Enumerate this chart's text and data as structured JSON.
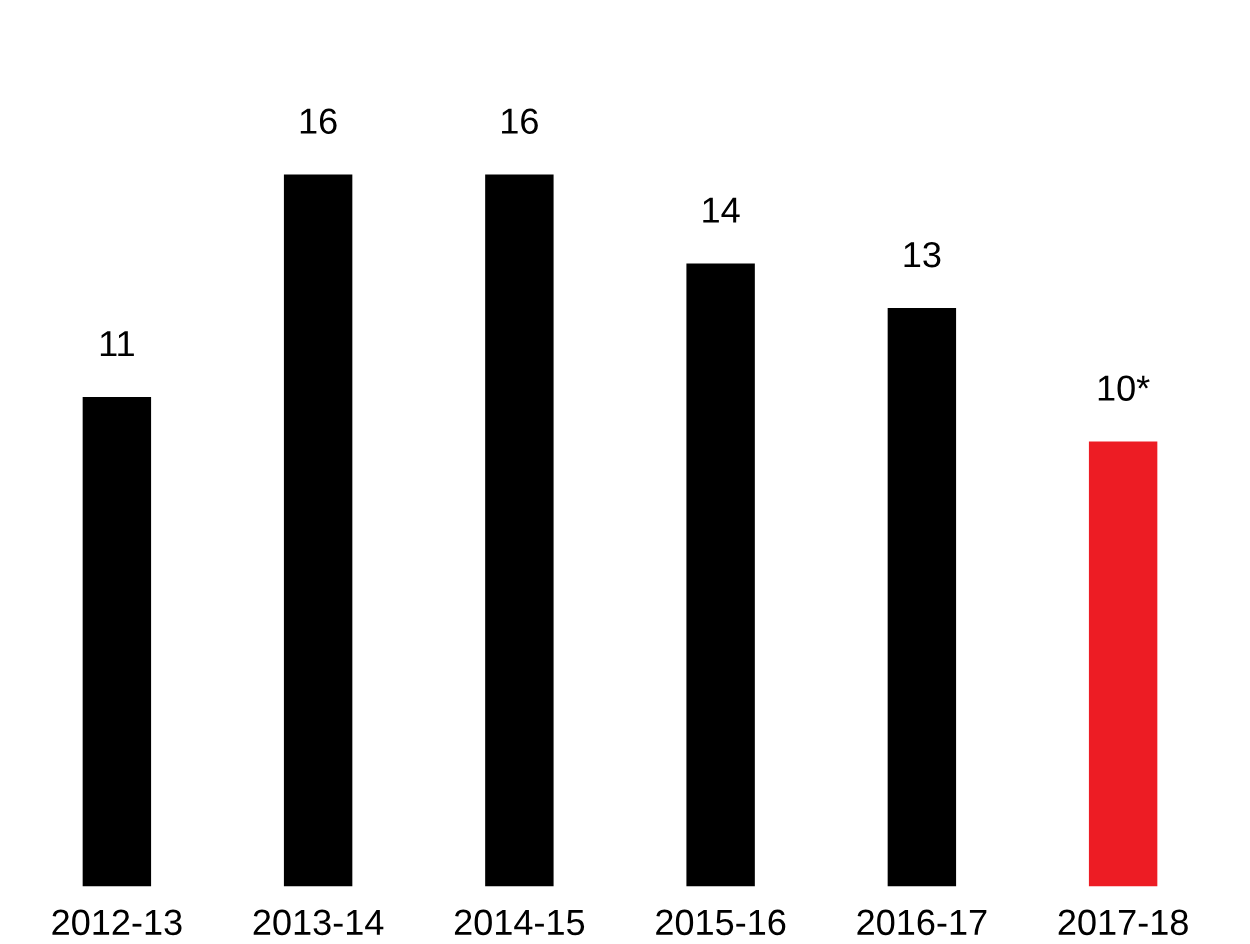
{
  "chart_data": {
    "type": "bar",
    "categories": [
      "2012-13",
      "2013-14",
      "2014-15",
      "2015-16",
      "2016-17",
      "2017-18"
    ],
    "values": [
      11,
      16,
      16,
      14,
      13,
      10
    ],
    "colors": [
      "#000000",
      "#000000",
      "#000000",
      "#000000",
      "#000000",
      "#ed1c24"
    ],
    "value_labels": [
      "11",
      "16",
      "16",
      "14",
      "13",
      "10*"
    ],
    "grid": false,
    "legend": false
  }
}
